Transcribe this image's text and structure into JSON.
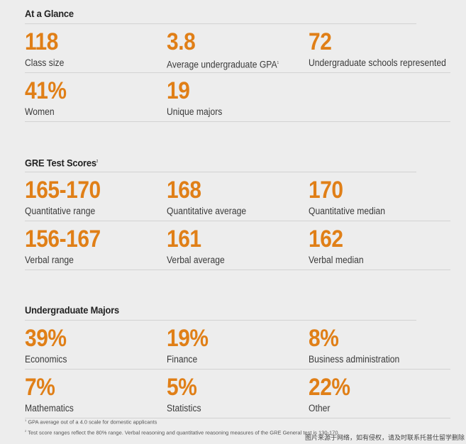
{
  "glance": {
    "title": "At a Glance",
    "rows": [
      [
        {
          "value": "118",
          "label": "Class size"
        },
        {
          "value": "3.8",
          "label": "Average undergraduate GPA",
          "sup": "1"
        },
        {
          "value": "72",
          "label": "Undergraduate schools represented"
        }
      ],
      [
        {
          "value": "41%",
          "label": "Women"
        },
        {
          "value": "19",
          "label": "Unique majors"
        }
      ]
    ]
  },
  "gre": {
    "title": "GRE Test Scores",
    "sup": "2",
    "rows": [
      [
        {
          "value": "165-170",
          "label": "Quantitative range"
        },
        {
          "value": "168",
          "label": "Quantitative average"
        },
        {
          "value": "170",
          "label": "Quantitative median"
        }
      ],
      [
        {
          "value": "156-167",
          "label": "Verbal range"
        },
        {
          "value": "161",
          "label": "Verbal average"
        },
        {
          "value": "162",
          "label": "Verbal median"
        }
      ]
    ]
  },
  "majors": {
    "title": "Undergraduate Majors",
    "rows": [
      [
        {
          "value": "39%",
          "label": "Economics"
        },
        {
          "value": "19%",
          "label": "Finance"
        },
        {
          "value": "8%",
          "label": "Business administration"
        }
      ],
      [
        {
          "value": "7%",
          "label": "Mathematics"
        },
        {
          "value": "5%",
          "label": "Statistics"
        },
        {
          "value": "22%",
          "label": "Other"
        }
      ]
    ]
  },
  "footnotes": [
    {
      "num": "1",
      "text": "GPA average out of a 4.0 scale for domestic applicants"
    },
    {
      "num": "2",
      "text": "Test score ranges reflect the 80% range. Verbal reasoning and quantitative reasoning measures of the GRE General test is 130-170."
    }
  ],
  "watermark": "图片来源于网络，如有侵权，请及时联系托普仕留学删除"
}
